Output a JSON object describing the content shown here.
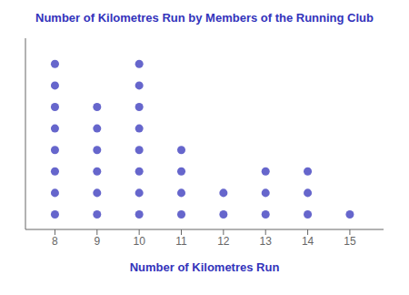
{
  "chart_data": {
    "type": "dot",
    "title": "Number of Kilometres Run by Members of the Running Club",
    "xlabel": "Number of Kilometres Run",
    "x": [
      8,
      9,
      10,
      11,
      12,
      13,
      14,
      15
    ],
    "values": [
      8,
      6,
      8,
      4,
      2,
      3,
      3,
      1
    ],
    "color": "#6666cc",
    "xlim": [
      7.3,
      15.8
    ],
    "xticks": [
      8,
      9,
      10,
      11,
      12,
      13,
      14,
      15
    ],
    "ylim": [
      0.3,
      9.2
    ],
    "tick_labels": "x"
  }
}
